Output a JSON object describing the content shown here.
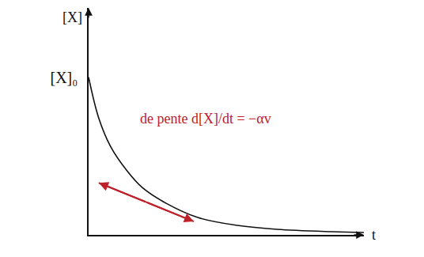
{
  "chart_data": {
    "type": "line",
    "x_label": "t",
    "y_label": "[X]",
    "xlim": [
      0,
      10
    ],
    "ylim": [
      0,
      1.44
    ],
    "xticks": [],
    "yticks": [
      {
        "value": 1,
        "label": "[X]₀"
      }
    ],
    "tick_labels": "y",
    "grid": false,
    "series": [
      {
        "color": "#111111",
        "line_style": "solid",
        "x": [
          0,
          0.37,
          0.8,
          1.38,
          1.95,
          2.82,
          3.97,
          5.4,
          6.84,
          8.85,
          10
        ],
        "values": [
          1.0,
          0.74,
          0.56,
          0.41,
          0.3,
          0.2,
          0.11,
          0.06,
          0.035,
          0.02,
          0.015
        ]
      },
      {
        "color": "#c0202a",
        "line_style": "double_arrow",
        "x": [
          0.37,
          3.82
        ],
        "values": [
          0.33,
          0.085
        ]
      }
    ],
    "annotations": [
      {
        "text": "de pente d[X]/dt = −αv",
        "x": 1.8,
        "y": 0.74,
        "color": "#c0202a"
      }
    ]
  }
}
